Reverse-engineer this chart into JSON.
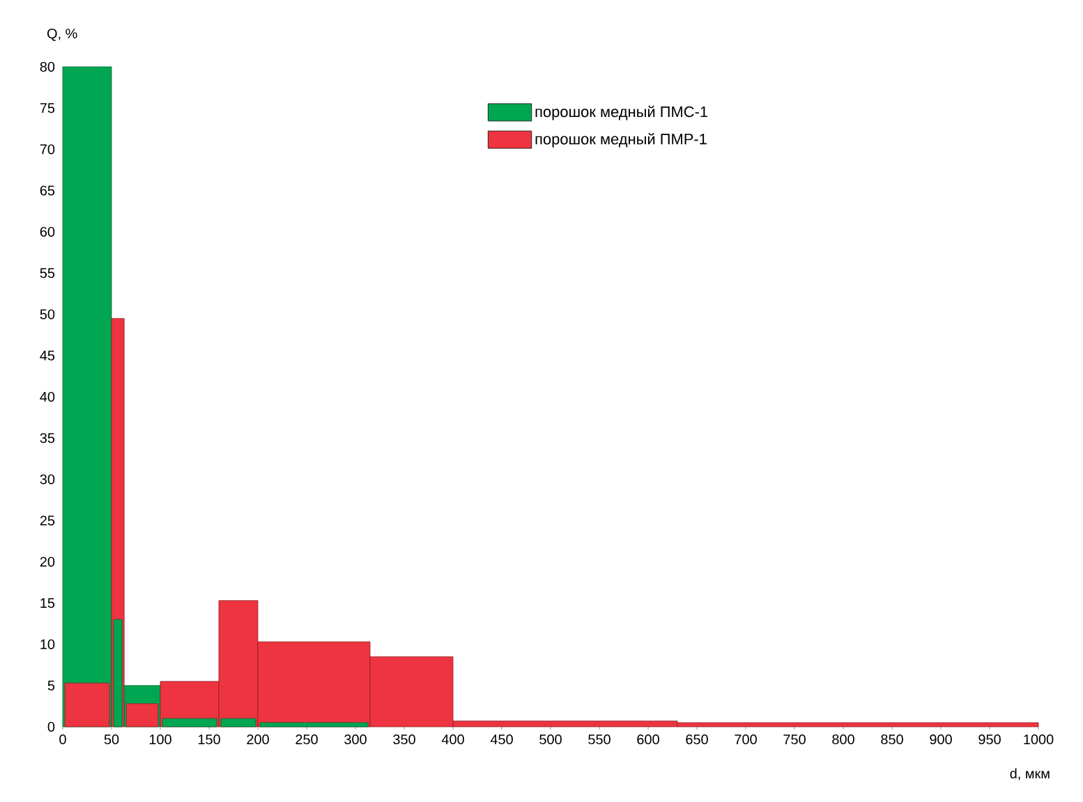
{
  "chart_data": {
    "type": "histogram",
    "xlabel": "d, мкм",
    "ylabel": "Q, %",
    "bins": [
      0,
      50,
      63,
      100,
      160,
      200,
      315,
      400,
      630,
      1000
    ],
    "series": [
      {
        "name": "порошок медный ПМС-1",
        "color": "#00a651",
        "values": [
          80,
          13,
          5,
          1,
          1,
          0.5,
          0,
          0,
          0
        ]
      },
      {
        "name": "порошок медный ПМР-1",
        "color": "#ed3440",
        "values": [
          5.3,
          49.5,
          2.8,
          5.5,
          15.3,
          10.3,
          8.5,
          0.7,
          0.5
        ]
      }
    ],
    "xlim": [
      0,
      1000
    ],
    "ylim": [
      0,
      80
    ],
    "xticks": [
      0,
      50,
      100,
      150,
      200,
      250,
      300,
      350,
      400,
      450,
      500,
      550,
      600,
      650,
      700,
      750,
      800,
      850,
      900,
      950,
      1000
    ],
    "yticks": [
      0,
      5,
      10,
      15,
      20,
      25,
      30,
      35,
      40,
      45,
      50,
      55,
      60,
      65,
      70,
      75,
      80
    ],
    "grid": false,
    "legend": "top"
  }
}
